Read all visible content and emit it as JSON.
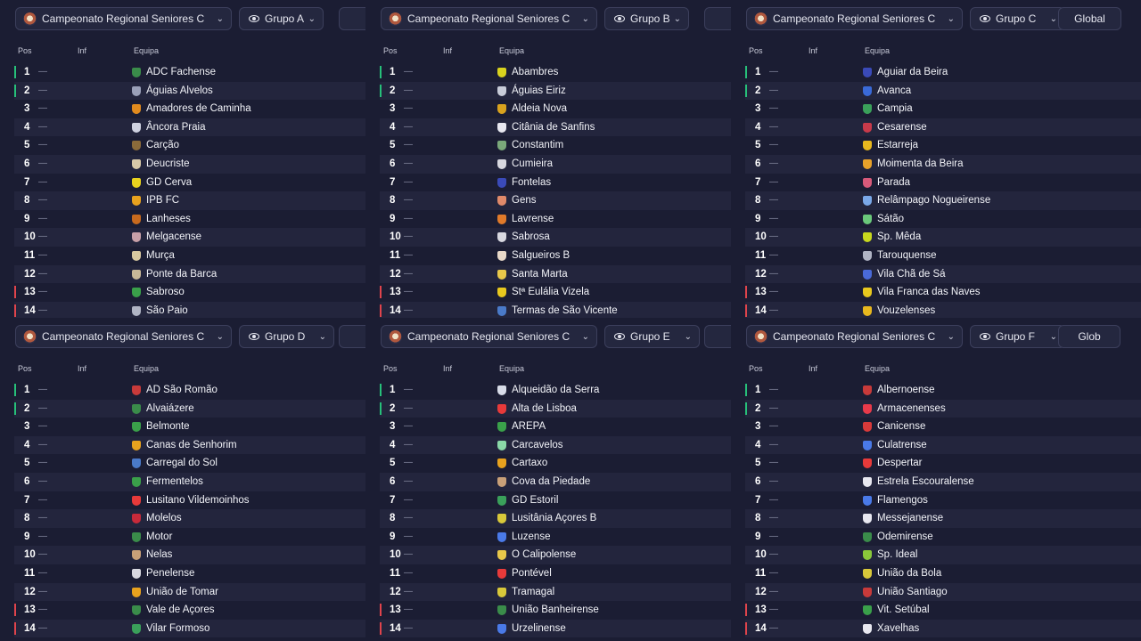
{
  "competition": "Campeonato Regional Seniores C",
  "global_label": "Global",
  "global_label_partial": "Glob",
  "headers": {
    "pos": "Pos",
    "inf": "Inf",
    "team": "Equipa"
  },
  "dash": "—",
  "colors": {
    "background": "#1b1d33",
    "row_alt": "#23253d",
    "promotion": "#27c07a",
    "relegation": "#e0444c"
  },
  "groups": [
    {
      "name": "Grupo A",
      "teams": [
        {
          "pos": "1",
          "name": "ADC Fachense",
          "mark": "up",
          "crest": "#3a8c4a"
        },
        {
          "pos": "2",
          "name": "Águias Alvelos",
          "mark": "up",
          "crest": "#9aa0b8"
        },
        {
          "pos": "3",
          "name": "Amadores de Caminha",
          "mark": "",
          "crest": "#e08a1e"
        },
        {
          "pos": "4",
          "name": "Âncora Praia",
          "mark": "",
          "crest": "#cfd2e0"
        },
        {
          "pos": "5",
          "name": "Carção",
          "mark": "",
          "crest": "#8a6a3a"
        },
        {
          "pos": "6",
          "name": "Deucriste",
          "mark": "",
          "crest": "#d8c9a8"
        },
        {
          "pos": "7",
          "name": "GD Cerva",
          "mark": "",
          "crest": "#e8d21e"
        },
        {
          "pos": "8",
          "name": "IPB FC",
          "mark": "",
          "crest": "#e8a21e"
        },
        {
          "pos": "9",
          "name": "Lanheses",
          "mark": "",
          "crest": "#c86a1e"
        },
        {
          "pos": "10",
          "name": "Melgacense",
          "mark": "",
          "crest": "#c8a0a8"
        },
        {
          "pos": "11",
          "name": "Murça",
          "mark": "",
          "crest": "#d8c8a0"
        },
        {
          "pos": "12",
          "name": "Ponte da Barca",
          "mark": "",
          "crest": "#c8b898"
        },
        {
          "pos": "13",
          "name": "Sabroso",
          "mark": "down",
          "crest": "#3aa04a"
        },
        {
          "pos": "14",
          "name": "São Paio",
          "mark": "down",
          "crest": "#b0b4c4"
        }
      ]
    },
    {
      "name": "Grupo B",
      "teams": [
        {
          "pos": "1",
          "name": "Abambres",
          "mark": "up",
          "crest": "#d8d21e"
        },
        {
          "pos": "2",
          "name": "Águias Eiriz",
          "mark": "up",
          "crest": "#c8ccd8"
        },
        {
          "pos": "3",
          "name": "Aldeia Nova",
          "mark": "",
          "crest": "#d8a21e"
        },
        {
          "pos": "4",
          "name": "Citânia de Sanfins",
          "mark": "",
          "crest": "#e8e8f0"
        },
        {
          "pos": "5",
          "name": "Constantim",
          "mark": "",
          "crest": "#7aa87a"
        },
        {
          "pos": "6",
          "name": "Cumieira",
          "mark": "",
          "crest": "#d8d8e0"
        },
        {
          "pos": "7",
          "name": "Fontelas",
          "mark": "",
          "crest": "#3a4ab8"
        },
        {
          "pos": "8",
          "name": "Gens",
          "mark": "",
          "crest": "#e08a6a"
        },
        {
          "pos": "9",
          "name": "Lavrense",
          "mark": "",
          "crest": "#e07a2a"
        },
        {
          "pos": "10",
          "name": "Sabrosa",
          "mark": "",
          "crest": "#d8d8e0"
        },
        {
          "pos": "11",
          "name": "Salgueiros B",
          "mark": "",
          "crest": "#e8d8c8"
        },
        {
          "pos": "12",
          "name": "Santa Marta",
          "mark": "",
          "crest": "#e8c84a"
        },
        {
          "pos": "13",
          "name": "Stª Eulália Vizela",
          "mark": "down",
          "crest": "#e8c81e"
        },
        {
          "pos": "14",
          "name": "Termas de São Vicente",
          "mark": "down",
          "crest": "#4a7ac8"
        }
      ]
    },
    {
      "name": "Grupo C",
      "teams": [
        {
          "pos": "1",
          "name": "Aguiar da Beira",
          "mark": "up",
          "crest": "#3a4ab8"
        },
        {
          "pos": "2",
          "name": "Avanca",
          "mark": "up",
          "crest": "#3a6ad8"
        },
        {
          "pos": "3",
          "name": "Campia",
          "mark": "",
          "crest": "#3aa05a"
        },
        {
          "pos": "4",
          "name": "Cesarense",
          "mark": "",
          "crest": "#c83a4a"
        },
        {
          "pos": "5",
          "name": "Estarreja",
          "mark": "",
          "crest": "#e8b81e"
        },
        {
          "pos": "6",
          "name": "Moimenta da Beira",
          "mark": "",
          "crest": "#e8a22a"
        },
        {
          "pos": "7",
          "name": "Parada",
          "mark": "",
          "crest": "#d85a7a"
        },
        {
          "pos": "8",
          "name": "Relâmpago Nogueirense",
          "mark": "",
          "crest": "#7aa8e8"
        },
        {
          "pos": "9",
          "name": "Sátão",
          "mark": "",
          "crest": "#6ac87a"
        },
        {
          "pos": "10",
          "name": "Sp. Mêda",
          "mark": "",
          "crest": "#c8d81e"
        },
        {
          "pos": "11",
          "name": "Tarouquense",
          "mark": "",
          "crest": "#b0b4c4"
        },
        {
          "pos": "12",
          "name": "Vila Chã de Sá",
          "mark": "",
          "crest": "#4a6ad8"
        },
        {
          "pos": "13",
          "name": "Vila Franca das Naves",
          "mark": "down",
          "crest": "#e8c81e"
        },
        {
          "pos": "14",
          "name": "Vouzelenses",
          "mark": "down",
          "crest": "#e8b81e"
        }
      ]
    },
    {
      "name": "Grupo D",
      "teams": [
        {
          "pos": "1",
          "name": "AD São Romão",
          "mark": "up",
          "crest": "#c83a3a"
        },
        {
          "pos": "2",
          "name": "Alvaiázere",
          "mark": "up",
          "crest": "#3a8c4a"
        },
        {
          "pos": "3",
          "name": "Belmonte",
          "mark": "",
          "crest": "#3aa04a"
        },
        {
          "pos": "4",
          "name": "Canas de Senhorim",
          "mark": "",
          "crest": "#e8a21e"
        },
        {
          "pos": "5",
          "name": "Carregal do Sol",
          "mark": "",
          "crest": "#4a7ac8"
        },
        {
          "pos": "6",
          "name": "Fermentelos",
          "mark": "",
          "crest": "#3aa04a"
        },
        {
          "pos": "7",
          "name": "Lusitano Vildemoinhos",
          "mark": "",
          "crest": "#e83a3a"
        },
        {
          "pos": "8",
          "name": "Molelos",
          "mark": "",
          "crest": "#c82a3a"
        },
        {
          "pos": "9",
          "name": "Motor",
          "mark": "",
          "crest": "#3a8c4a"
        },
        {
          "pos": "10",
          "name": "Nelas",
          "mark": "",
          "crest": "#c8a078"
        },
        {
          "pos": "11",
          "name": "Penelense",
          "mark": "",
          "crest": "#d8d8e0"
        },
        {
          "pos": "12",
          "name": "União de Tomar",
          "mark": "",
          "crest": "#e8a21e"
        },
        {
          "pos": "13",
          "name": "Vale de Açores",
          "mark": "down",
          "crest": "#3a8c4a"
        },
        {
          "pos": "14",
          "name": "Vilar Formoso",
          "mark": "down",
          "crest": "#3aa05a"
        }
      ]
    },
    {
      "name": "Grupo E",
      "teams": [
        {
          "pos": "1",
          "name": "Alqueidão da Serra",
          "mark": "up",
          "crest": "#d8dce8"
        },
        {
          "pos": "2",
          "name": "Alta de Lisboa",
          "mark": "up",
          "crest": "#e83a3a"
        },
        {
          "pos": "3",
          "name": "AREPA",
          "mark": "",
          "crest": "#3aa04a"
        },
        {
          "pos": "4",
          "name": "Carcavelos",
          "mark": "",
          "crest": "#8ad8a8"
        },
        {
          "pos": "5",
          "name": "Cartaxo",
          "mark": "",
          "crest": "#e8a21e"
        },
        {
          "pos": "6",
          "name": "Cova da Piedade",
          "mark": "",
          "crest": "#c8a078"
        },
        {
          "pos": "7",
          "name": "GD Estoril",
          "mark": "",
          "crest": "#3aa05a"
        },
        {
          "pos": "8",
          "name": "Lusitânia Açores B",
          "mark": "",
          "crest": "#d8c83a"
        },
        {
          "pos": "9",
          "name": "Luzense",
          "mark": "",
          "crest": "#4a7ae8"
        },
        {
          "pos": "10",
          "name": "O Calipolense",
          "mark": "",
          "crest": "#e8c84a"
        },
        {
          "pos": "11",
          "name": "Pontével",
          "mark": "",
          "crest": "#e83a3a"
        },
        {
          "pos": "12",
          "name": "Tramagal",
          "mark": "",
          "crest": "#d8c83a"
        },
        {
          "pos": "13",
          "name": "União Banheirense",
          "mark": "down",
          "crest": "#3a8c4a"
        },
        {
          "pos": "14",
          "name": "Urzelinense",
          "mark": "down",
          "crest": "#4a7ae8"
        }
      ]
    },
    {
      "name": "Grupo F",
      "teams": [
        {
          "pos": "1",
          "name": "Albernoense",
          "mark": "up",
          "crest": "#c83a3a"
        },
        {
          "pos": "2",
          "name": "Armacenenses",
          "mark": "up",
          "crest": "#e83a4a"
        },
        {
          "pos": "3",
          "name": "Canicense",
          "mark": "",
          "crest": "#d83a3a"
        },
        {
          "pos": "4",
          "name": "Culatrense",
          "mark": "",
          "crest": "#4a7ae8"
        },
        {
          "pos": "5",
          "name": "Despertar",
          "mark": "",
          "crest": "#e83a3a"
        },
        {
          "pos": "6",
          "name": "Estrela Escouralense",
          "mark": "",
          "crest": "#e8e8f0"
        },
        {
          "pos": "7",
          "name": "Flamengos",
          "mark": "",
          "crest": "#4a7ae8"
        },
        {
          "pos": "8",
          "name": "Messejanense",
          "mark": "",
          "crest": "#e8e8f0"
        },
        {
          "pos": "9",
          "name": "Odemirense",
          "mark": "",
          "crest": "#3a8c4a"
        },
        {
          "pos": "10",
          "name": "Sp. Ideal",
          "mark": "",
          "crest": "#8ac83a"
        },
        {
          "pos": "11",
          "name": "União da Bola",
          "mark": "",
          "crest": "#d8c83a"
        },
        {
          "pos": "12",
          "name": "União Santiago",
          "mark": "",
          "crest": "#c83a3a"
        },
        {
          "pos": "13",
          "name": "Vit. Setúbal",
          "mark": "down",
          "crest": "#3aa04a"
        },
        {
          "pos": "14",
          "name": "Xavelhas",
          "mark": "down",
          "crest": "#e8e8f0"
        }
      ]
    }
  ]
}
